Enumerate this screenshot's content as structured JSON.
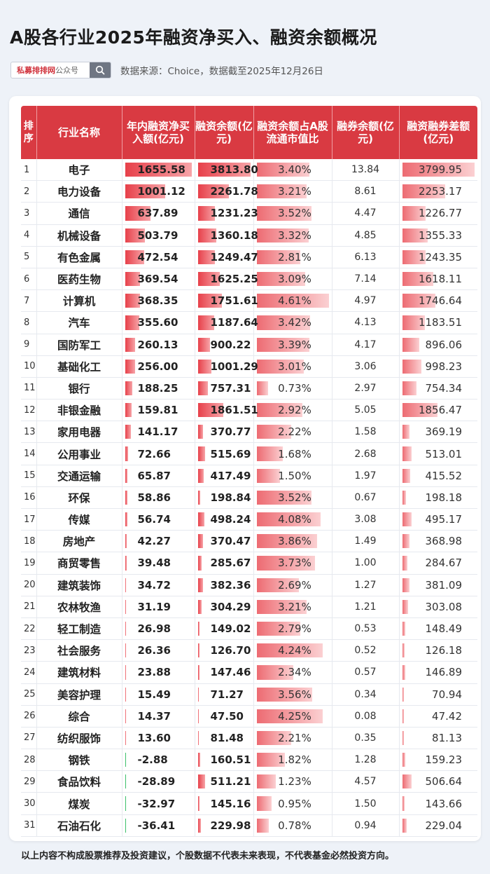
{
  "title": "A股各行业2025年融资净买入、融资余额概况",
  "search": {
    "brand": "私募排排网",
    "suffix": "公众号"
  },
  "source": "数据来源：Choice，数据截至2025年12月26日",
  "table": {
    "headers": [
      "排序",
      "行业名称",
      "年内融资净买入额(亿元)",
      "融资余额(亿元)",
      "融资余额占A股流通市值比",
      "融券余额(亿元)",
      "融资融券差额(亿元)"
    ],
    "rows": [
      {
        "rank": "1",
        "name": "电子",
        "net": "1655.58",
        "bal": "3813.80",
        "ratio": "3.40%",
        "sl": "13.84",
        "diff": "3799.95"
      },
      {
        "rank": "2",
        "name": "电力设备",
        "net": "1001.12",
        "bal": "2261.78",
        "ratio": "3.21%",
        "sl": "8.61",
        "diff": "2253.17"
      },
      {
        "rank": "3",
        "name": "通信",
        "net": "637.89",
        "bal": "1231.23",
        "ratio": "3.52%",
        "sl": "4.47",
        "diff": "1226.77"
      },
      {
        "rank": "4",
        "name": "机械设备",
        "net": "503.79",
        "bal": "1360.18",
        "ratio": "3.32%",
        "sl": "4.85",
        "diff": "1355.33"
      },
      {
        "rank": "5",
        "name": "有色金属",
        "net": "472.54",
        "bal": "1249.47",
        "ratio": "2.81%",
        "sl": "6.13",
        "diff": "1243.35"
      },
      {
        "rank": "6",
        "name": "医药生物",
        "net": "369.54",
        "bal": "1625.25",
        "ratio": "3.09%",
        "sl": "7.14",
        "diff": "1618.11"
      },
      {
        "rank": "7",
        "name": "计算机",
        "net": "368.35",
        "bal": "1751.61",
        "ratio": "4.61%",
        "sl": "4.97",
        "diff": "1746.64"
      },
      {
        "rank": "8",
        "name": "汽车",
        "net": "355.60",
        "bal": "1187.64",
        "ratio": "3.42%",
        "sl": "4.13",
        "diff": "1183.51"
      },
      {
        "rank": "9",
        "name": "国防军工",
        "net": "260.13",
        "bal": "900.22",
        "ratio": "3.39%",
        "sl": "4.17",
        "diff": "896.06"
      },
      {
        "rank": "10",
        "name": "基础化工",
        "net": "256.00",
        "bal": "1001.29",
        "ratio": "3.01%",
        "sl": "3.06",
        "diff": "998.23"
      },
      {
        "rank": "11",
        "name": "银行",
        "net": "188.25",
        "bal": "757.31",
        "ratio": "0.73%",
        "sl": "2.97",
        "diff": "754.34"
      },
      {
        "rank": "12",
        "name": "非银金融",
        "net": "159.81",
        "bal": "1861.51",
        "ratio": "2.92%",
        "sl": "5.05",
        "diff": "1856.47"
      },
      {
        "rank": "13",
        "name": "家用电器",
        "net": "141.17",
        "bal": "370.77",
        "ratio": "2.22%",
        "sl": "1.58",
        "diff": "369.19"
      },
      {
        "rank": "14",
        "name": "公用事业",
        "net": "72.66",
        "bal": "515.69",
        "ratio": "1.68%",
        "sl": "2.68",
        "diff": "513.01"
      },
      {
        "rank": "15",
        "name": "交通运输",
        "net": "65.87",
        "bal": "417.49",
        "ratio": "1.50%",
        "sl": "1.97",
        "diff": "415.52"
      },
      {
        "rank": "16",
        "name": "环保",
        "net": "58.86",
        "bal": "198.84",
        "ratio": "3.52%",
        "sl": "0.67",
        "diff": "198.18"
      },
      {
        "rank": "17",
        "name": "传媒",
        "net": "56.74",
        "bal": "498.24",
        "ratio": "4.08%",
        "sl": "3.08",
        "diff": "495.17"
      },
      {
        "rank": "18",
        "name": "房地产",
        "net": "42.27",
        "bal": "370.47",
        "ratio": "3.86%",
        "sl": "1.49",
        "diff": "368.98"
      },
      {
        "rank": "19",
        "name": "商贸零售",
        "net": "39.48",
        "bal": "285.67",
        "ratio": "3.73%",
        "sl": "1.00",
        "diff": "284.67"
      },
      {
        "rank": "20",
        "name": "建筑装饰",
        "net": "34.72",
        "bal": "382.36",
        "ratio": "2.69%",
        "sl": "1.27",
        "diff": "381.09"
      },
      {
        "rank": "21",
        "name": "农林牧渔",
        "net": "31.19",
        "bal": "304.29",
        "ratio": "3.21%",
        "sl": "1.21",
        "diff": "303.08"
      },
      {
        "rank": "22",
        "name": "轻工制造",
        "net": "26.98",
        "bal": "149.02",
        "ratio": "2.79%",
        "sl": "0.53",
        "diff": "148.49"
      },
      {
        "rank": "23",
        "name": "社会服务",
        "net": "26.36",
        "bal": "126.70",
        "ratio": "4.24%",
        "sl": "0.52",
        "diff": "126.18"
      },
      {
        "rank": "24",
        "name": "建筑材料",
        "net": "23.88",
        "bal": "147.46",
        "ratio": "2.34%",
        "sl": "0.57",
        "diff": "146.89"
      },
      {
        "rank": "25",
        "name": "美容护理",
        "net": "15.49",
        "bal": "71.27",
        "ratio": "3.56%",
        "sl": "0.34",
        "diff": "70.94"
      },
      {
        "rank": "26",
        "name": "综合",
        "net": "14.37",
        "bal": "47.50",
        "ratio": "4.25%",
        "sl": "0.08",
        "diff": "47.42"
      },
      {
        "rank": "27",
        "name": "纺织服饰",
        "net": "13.60",
        "bal": "81.48",
        "ratio": "2.21%",
        "sl": "0.35",
        "diff": "81.13"
      },
      {
        "rank": "28",
        "name": "钢铁",
        "net": "-2.88",
        "bal": "160.51",
        "ratio": "1.82%",
        "sl": "1.28",
        "diff": "159.23"
      },
      {
        "rank": "29",
        "name": "食品饮料",
        "net": "-28.89",
        "bal": "511.21",
        "ratio": "1.23%",
        "sl": "4.57",
        "diff": "506.64"
      },
      {
        "rank": "30",
        "name": "煤炭",
        "net": "-32.97",
        "bal": "145.16",
        "ratio": "0.95%",
        "sl": "1.50",
        "diff": "143.66"
      },
      {
        "rank": "31",
        "name": "石油石化",
        "net": "-36.41",
        "bal": "229.98",
        "ratio": "0.78%",
        "sl": "0.94",
        "diff": "229.04"
      }
    ]
  },
  "footer": "以上内容不构成股票推荐及投资建议，个股数据不代表未来表现，不代表基金必然投资方向。",
  "colors": {
    "header_red": "#d93a42",
    "bar_red": "#e7404a",
    "bar_green": "#3cc06a",
    "background": "#eef2f8"
  }
}
